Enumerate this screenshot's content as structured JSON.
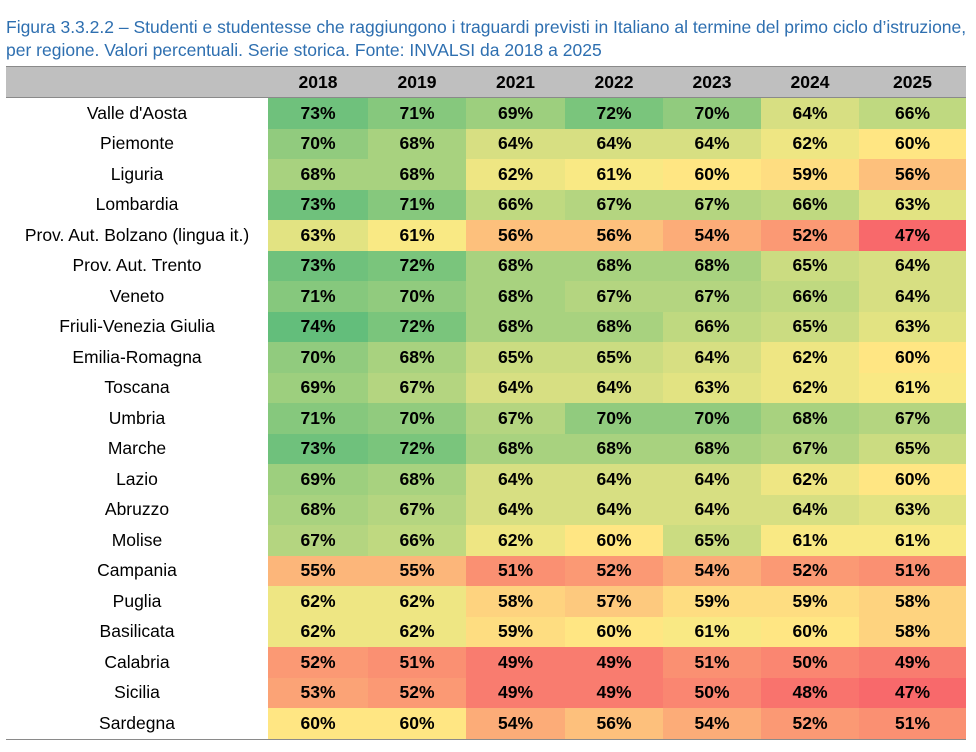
{
  "caption": "Figura 3.3.2.2 – Studenti e studentesse che raggiungono i traguardi previsti in Italiano al termine del primo ciclo d’istruzione, per regione. Valori percentuali. Serie storica. Fonte: INVALSI da 2018 a 2025",
  "chart_data": {
    "type": "heatmap",
    "unit": "%",
    "columns": [
      "2018",
      "2019",
      "2021",
      "2022",
      "2023",
      "2024",
      "2025"
    ],
    "color_scale": {
      "low": "#F8696B",
      "mid": "#FFEB84",
      "high": "#63BE7B"
    },
    "rows": [
      {
        "label": "Valle d'Aosta",
        "values": [
          73,
          71,
          69,
          72,
          70,
          64,
          66
        ]
      },
      {
        "label": "Piemonte",
        "values": [
          70,
          68,
          64,
          64,
          64,
          62,
          60
        ]
      },
      {
        "label": "Liguria",
        "values": [
          68,
          68,
          62,
          61,
          60,
          59,
          56
        ]
      },
      {
        "label": "Lombardia",
        "values": [
          73,
          71,
          66,
          67,
          67,
          66,
          63
        ]
      },
      {
        "label": "Prov. Aut. Bolzano (lingua it.)",
        "values": [
          63,
          61,
          56,
          56,
          54,
          52,
          47
        ]
      },
      {
        "label": "Prov. Aut. Trento",
        "values": [
          73,
          72,
          68,
          68,
          68,
          65,
          64
        ]
      },
      {
        "label": "Veneto",
        "values": [
          71,
          70,
          68,
          67,
          67,
          66,
          64
        ]
      },
      {
        "label": "Friuli-Venezia Giulia",
        "values": [
          74,
          72,
          68,
          68,
          66,
          65,
          63
        ]
      },
      {
        "label": "Emilia-Romagna",
        "values": [
          70,
          68,
          65,
          65,
          64,
          62,
          60
        ]
      },
      {
        "label": "Toscana",
        "values": [
          69,
          67,
          64,
          64,
          63,
          62,
          61
        ]
      },
      {
        "label": "Umbria",
        "values": [
          71,
          70,
          67,
          70,
          70,
          68,
          67
        ]
      },
      {
        "label": "Marche",
        "values": [
          73,
          72,
          68,
          68,
          68,
          67,
          65
        ]
      },
      {
        "label": "Lazio",
        "values": [
          69,
          68,
          64,
          64,
          64,
          62,
          60
        ]
      },
      {
        "label": "Abruzzo",
        "values": [
          68,
          67,
          64,
          64,
          64,
          64,
          63
        ]
      },
      {
        "label": "Molise",
        "values": [
          67,
          66,
          62,
          60,
          65,
          61,
          61
        ]
      },
      {
        "label": "Campania",
        "values": [
          55,
          55,
          51,
          52,
          54,
          52,
          51
        ]
      },
      {
        "label": "Puglia",
        "values": [
          62,
          62,
          58,
          57,
          59,
          59,
          58
        ]
      },
      {
        "label": "Basilicata",
        "values": [
          62,
          62,
          59,
          60,
          61,
          60,
          58
        ]
      },
      {
        "label": "Calabria",
        "values": [
          52,
          51,
          49,
          49,
          51,
          50,
          49
        ]
      },
      {
        "label": "Sicilia",
        "values": [
          53,
          52,
          49,
          49,
          50,
          48,
          47
        ]
      },
      {
        "label": "Sardegna",
        "values": [
          60,
          60,
          54,
          56,
          54,
          52,
          51
        ]
      }
    ]
  }
}
